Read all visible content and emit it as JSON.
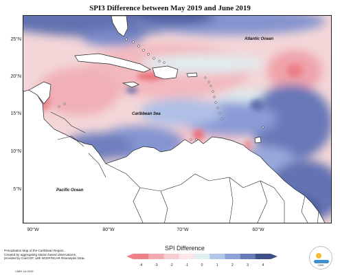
{
  "title": "SPI3 Difference between May 2019 and June 2019",
  "lat_labels": [
    "25°N",
    "20°N",
    "15°N",
    "10°N",
    "5°N"
  ],
  "lon_labels": [
    "90°W",
    "80°W",
    "70°W",
    "60°W"
  ],
  "regions": {
    "atlantic": "Atlantic Ocean",
    "caribbean": "Caribbean Sea",
    "pacific": "Pacific Ocean"
  },
  "footnote": {
    "line1": "Precipitation Map of the Caribbean Region.",
    "line2": "Created by aggregating station based observations,",
    "line3": "provided by CariCOF, with NCEP/NCAR Reanalysis Data.",
    "credit": "CIMH  Jul 2019"
  },
  "legend": {
    "title": "SPI Difference",
    "ticks": [
      "-4",
      "-3",
      "-2",
      "-1",
      "0",
      "1",
      "2",
      "3",
      "4"
    ],
    "colors": [
      "#f08088",
      "#f3a9af",
      "#f7ccd0",
      "#fbe5e7",
      "#dfeef1",
      "#b5c7e8",
      "#8ea0d8",
      "#6979b8",
      "#3e4f8a"
    ]
  },
  "logo_text": "CIMH",
  "colors": {
    "land": "#ffffff",
    "border": "#222222",
    "strong_dry": "#f08088",
    "dry": "#f3a9af",
    "light_dry": "#f7ccd0",
    "neutral": "#dfeef1",
    "wet": "#8ea0d8",
    "strong_wet": "#5766a8"
  }
}
